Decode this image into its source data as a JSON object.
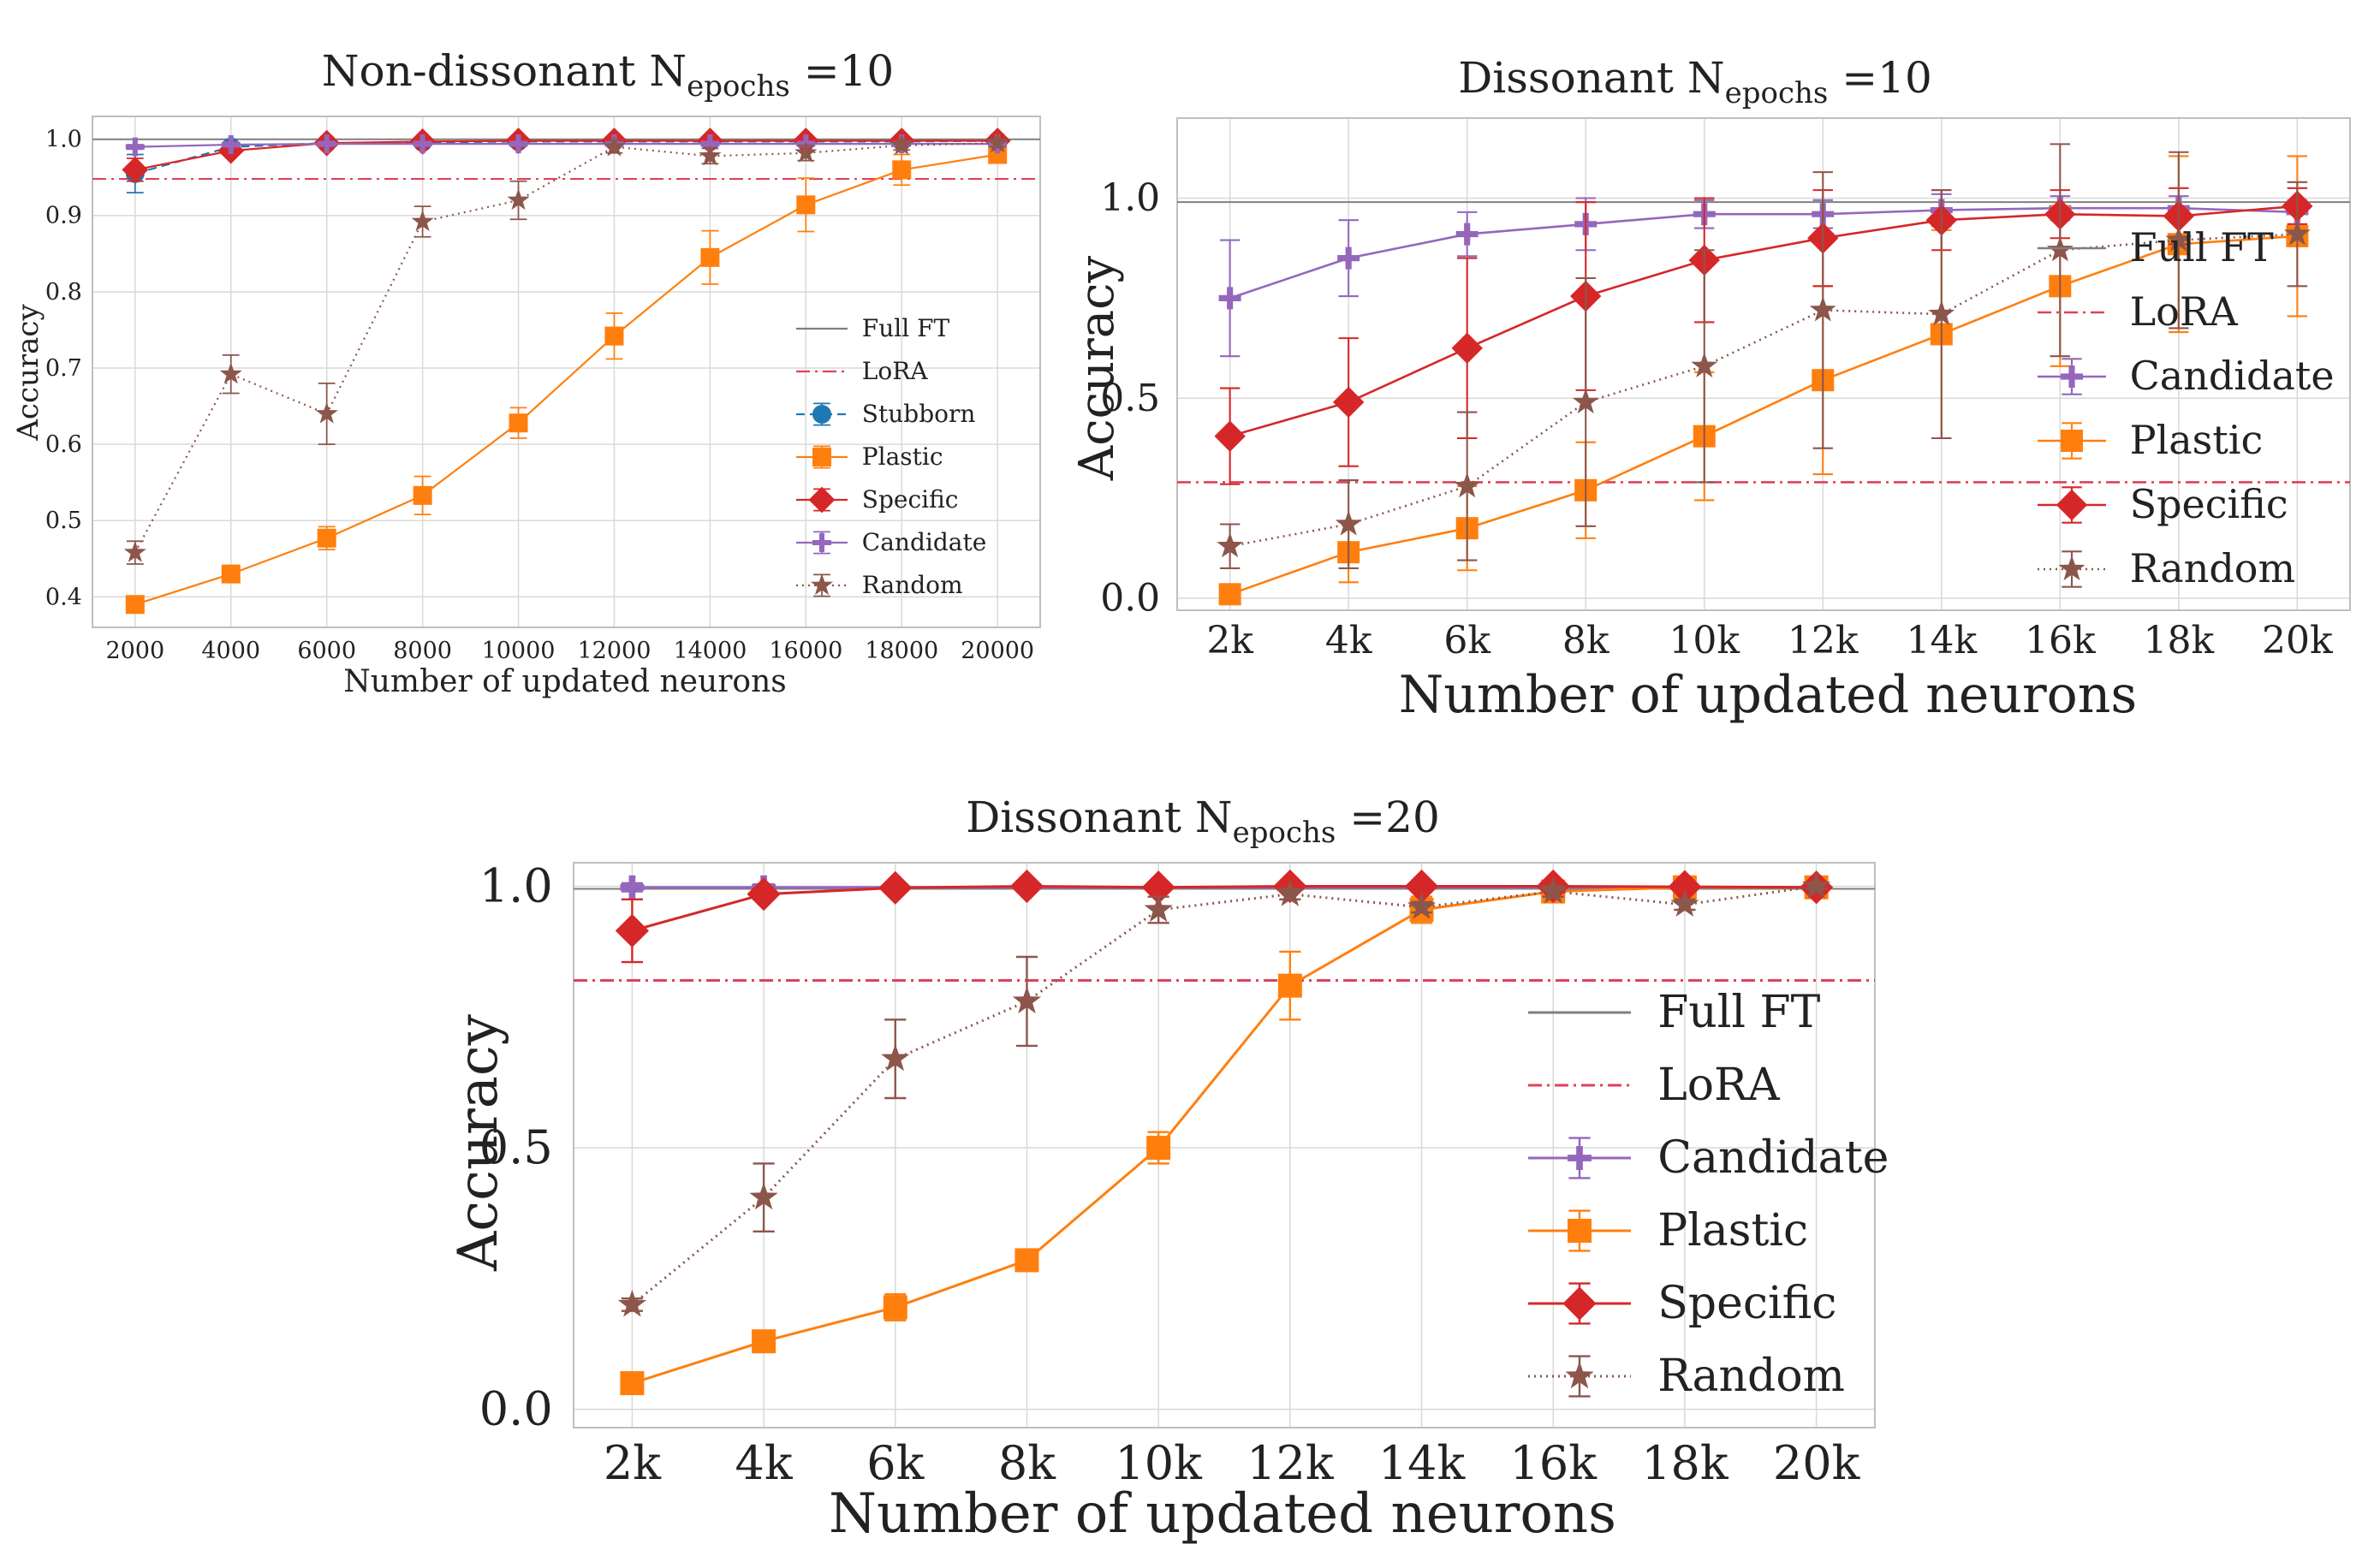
{
  "colors": {
    "full_ft": "#7f7f7f",
    "lora": "#e0405a",
    "stubborn": "#1f77b4",
    "plastic": "#ff7f0e",
    "specific": "#d62728",
    "candidate": "#9467bd",
    "random": "#8c564b",
    "grid": "#d9d9d9",
    "frame": "#bfbfbf"
  },
  "chart_data": [
    {
      "type": "line",
      "title_main": "Non-dissonant N",
      "title_sub": "epochs",
      "title_tail": " =10",
      "xlabel": "Number of updated neurons",
      "ylabel": "Accuracy",
      "ylim": [
        0.36,
        1.03
      ],
      "yticks": [
        0.4,
        0.5,
        0.6,
        0.7,
        0.8,
        0.9,
        1.0
      ],
      "ytick_labels": [
        "0.4",
        "0.5",
        "0.6",
        "0.7",
        "0.8",
        "0.9",
        "1.0"
      ],
      "x": [
        2000,
        4000,
        6000,
        8000,
        10000,
        12000,
        14000,
        16000,
        18000,
        20000
      ],
      "xtick_labels": [
        "2000",
        "4000",
        "6000",
        "8000",
        "10000",
        "12000",
        "14000",
        "16000",
        "18000",
        "20000"
      ],
      "grid": true,
      "legend_position": "lower-right",
      "references": [
        {
          "name": "Full FT",
          "value": 1.0,
          "style": "solid",
          "color_key": "full_ft"
        },
        {
          "name": "LoRA",
          "value": 0.948,
          "style": "dashdot",
          "color_key": "lora"
        }
      ],
      "series": [
        {
          "name": "Stubborn",
          "marker": "circle",
          "style": "dashed",
          "color_key": "stubborn",
          "values": [
            0.955,
            0.99,
            0.995,
            0.996,
            0.997,
            0.997,
            0.997,
            0.997,
            0.997,
            0.998
          ],
          "errors": [
            0.025,
            0.004,
            0.003,
            0.003,
            0.002,
            0.002,
            0.002,
            0.002,
            0.002,
            0.002
          ]
        },
        {
          "name": "Plastic",
          "marker": "square",
          "style": "solid",
          "color_key": "plastic",
          "values": [
            0.39,
            0.43,
            0.477,
            0.533,
            0.628,
            0.742,
            0.845,
            0.914,
            0.96,
            0.98
          ],
          "errors": [
            0.005,
            0.005,
            0.015,
            0.025,
            0.02,
            0.03,
            0.035,
            0.035,
            0.02,
            0.01
          ]
        },
        {
          "name": "Specific",
          "marker": "diamond",
          "style": "solid",
          "color_key": "specific",
          "values": [
            0.96,
            0.985,
            0.995,
            0.997,
            0.998,
            0.998,
            0.998,
            0.998,
            0.998,
            0.998
          ],
          "errors": [
            0.015,
            0.005,
            0.003,
            0.002,
            0.002,
            0.002,
            0.002,
            0.002,
            0.002,
            0.002
          ]
        },
        {
          "name": "Candidate",
          "marker": "plus",
          "style": "solid",
          "color_key": "candidate",
          "values": [
            0.99,
            0.993,
            0.994,
            0.994,
            0.994,
            0.994,
            0.994,
            0.994,
            0.994,
            0.994
          ],
          "errors": [
            0.003,
            0.003,
            0.003,
            0.003,
            0.003,
            0.003,
            0.003,
            0.003,
            0.003,
            0.003
          ]
        },
        {
          "name": "Random",
          "marker": "star",
          "style": "dotted",
          "color_key": "random",
          "values": [
            0.458,
            0.692,
            0.64,
            0.892,
            0.92,
            0.99,
            0.978,
            0.982,
            0.992,
            0.995
          ],
          "errors": [
            0.015,
            0.025,
            0.04,
            0.02,
            0.025,
            0.008,
            0.01,
            0.01,
            0.006,
            0.005
          ]
        }
      ]
    },
    {
      "type": "line",
      "title_main": "Dissonant N",
      "title_sub": "epochs",
      "title_tail": " =10",
      "xlabel": "Number of updated neurons",
      "ylabel": "Accuracy",
      "ylim": [
        -0.03,
        1.2
      ],
      "yticks": [
        0.0,
        0.5,
        1.0
      ],
      "ytick_labels": [
        "0.0",
        "0.5",
        "1.0"
      ],
      "x": [
        2000,
        4000,
        6000,
        8000,
        10000,
        12000,
        14000,
        16000,
        18000,
        20000
      ],
      "xtick_labels": [
        "2k",
        "4k",
        "6k",
        "8k",
        "10k",
        "12k",
        "14k",
        "16k",
        "18k",
        "20k"
      ],
      "grid": true,
      "legend_position": "right",
      "references": [
        {
          "name": "Full FT",
          "value": 0.99,
          "style": "solid",
          "color_key": "full_ft"
        },
        {
          "name": "LoRA",
          "value": 0.29,
          "style": "dashdot",
          "color_key": "lora"
        }
      ],
      "series": [
        {
          "name": "Candidate",
          "marker": "plus",
          "style": "solid",
          "color_key": "candidate",
          "values": [
            0.75,
            0.85,
            0.91,
            0.935,
            0.96,
            0.96,
            0.97,
            0.975,
            0.975,
            0.965
          ],
          "errors": [
            0.145,
            0.095,
            0.055,
            0.065,
            0.035,
            0.035,
            0.04,
            0.03,
            0.03,
            0.03
          ]
        },
        {
          "name": "Plastic",
          "marker": "square",
          "style": "solid",
          "color_key": "plastic",
          "values": [
            0.01,
            0.115,
            0.175,
            0.27,
            0.405,
            0.545,
            0.66,
            0.78,
            0.885,
            0.905
          ],
          "errors": [
            0.01,
            0.075,
            0.105,
            0.12,
            0.16,
            0.235,
            0.26,
            0.2,
            0.22,
            0.2
          ]
        },
        {
          "name": "Specific",
          "marker": "diamond",
          "style": "solid",
          "color_key": "specific",
          "values": [
            0.405,
            0.49,
            0.625,
            0.755,
            0.845,
            0.9,
            0.945,
            0.96,
            0.955,
            0.98
          ],
          "errors": [
            0.12,
            0.16,
            0.225,
            0.235,
            0.155,
            0.12,
            0.075,
            0.06,
            0.07,
            0.045
          ]
        },
        {
          "name": "Random",
          "marker": "star",
          "style": "dotted",
          "color_key": "random",
          "values": [
            0.13,
            0.185,
            0.28,
            0.49,
            0.58,
            0.72,
            0.71,
            0.87,
            0.895,
            0.91
          ],
          "errors": [
            0.055,
            0.11,
            0.185,
            0.31,
            0.29,
            0.345,
            0.31,
            0.265,
            0.22,
            0.13
          ]
        }
      ]
    },
    {
      "type": "line",
      "title_main": "Dissonant N",
      "title_sub": "epochs",
      "title_tail": " =20",
      "xlabel": "Number of updated neurons",
      "ylabel": "Accuracy",
      "ylim": [
        -0.035,
        1.045
      ],
      "yticks": [
        0.0,
        0.5,
        1.0
      ],
      "ytick_labels": [
        "0.0",
        "0.5",
        "1.0"
      ],
      "x": [
        2000,
        4000,
        6000,
        8000,
        10000,
        12000,
        14000,
        16000,
        18000,
        20000
      ],
      "xtick_labels": [
        "2k",
        "4k",
        "6k",
        "8k",
        "10k",
        "12k",
        "14k",
        "16k",
        "18k",
        "20k"
      ],
      "grid": true,
      "legend_position": "lower-right",
      "references": [
        {
          "name": "Full FT",
          "value": 0.995,
          "style": "solid",
          "color_key": "full_ft"
        },
        {
          "name": "LoRA",
          "value": 0.82,
          "style": "dashdot",
          "color_key": "lora"
        }
      ],
      "series": [
        {
          "name": "Candidate",
          "marker": "plus",
          "style": "solid",
          "color_key": "candidate",
          "values": [
            0.998,
            0.998,
            0.998,
            0.998,
            0.998,
            0.998,
            0.998,
            0.998,
            0.998,
            0.998
          ],
          "errors": [
            0.008,
            0.006,
            0.004,
            0.003,
            0.003,
            0.003,
            0.003,
            0.003,
            0.003,
            0.003
          ]
        },
        {
          "name": "Plastic",
          "marker": "square",
          "style": "solid",
          "color_key": "plastic",
          "values": [
            0.05,
            0.13,
            0.195,
            0.285,
            0.5,
            0.81,
            0.955,
            0.99,
            0.998,
            0.998
          ],
          "errors": [
            0.005,
            0.012,
            0.025,
            0.02,
            0.03,
            0.065,
            0.025,
            0.01,
            0.005,
            0.005
          ]
        },
        {
          "name": "Specific",
          "marker": "diamond",
          "style": "solid",
          "color_key": "specific",
          "values": [
            0.915,
            0.985,
            0.997,
            1.0,
            0.998,
            1.0,
            1.0,
            1.0,
            0.999,
            0.998
          ],
          "errors": [
            0.06,
            0.01,
            0.004,
            0.003,
            0.003,
            0.003,
            0.003,
            0.003,
            0.003,
            0.003
          ]
        },
        {
          "name": "Random",
          "marker": "star",
          "style": "dotted",
          "color_key": "random",
          "values": [
            0.2,
            0.405,
            0.67,
            0.78,
            0.955,
            0.985,
            0.96,
            0.99,
            0.965,
            1.0
          ],
          "errors": [
            0.012,
            0.065,
            0.075,
            0.085,
            0.025,
            0.01,
            0.01,
            0.01,
            0.01,
            0.005
          ]
        }
      ]
    }
  ]
}
